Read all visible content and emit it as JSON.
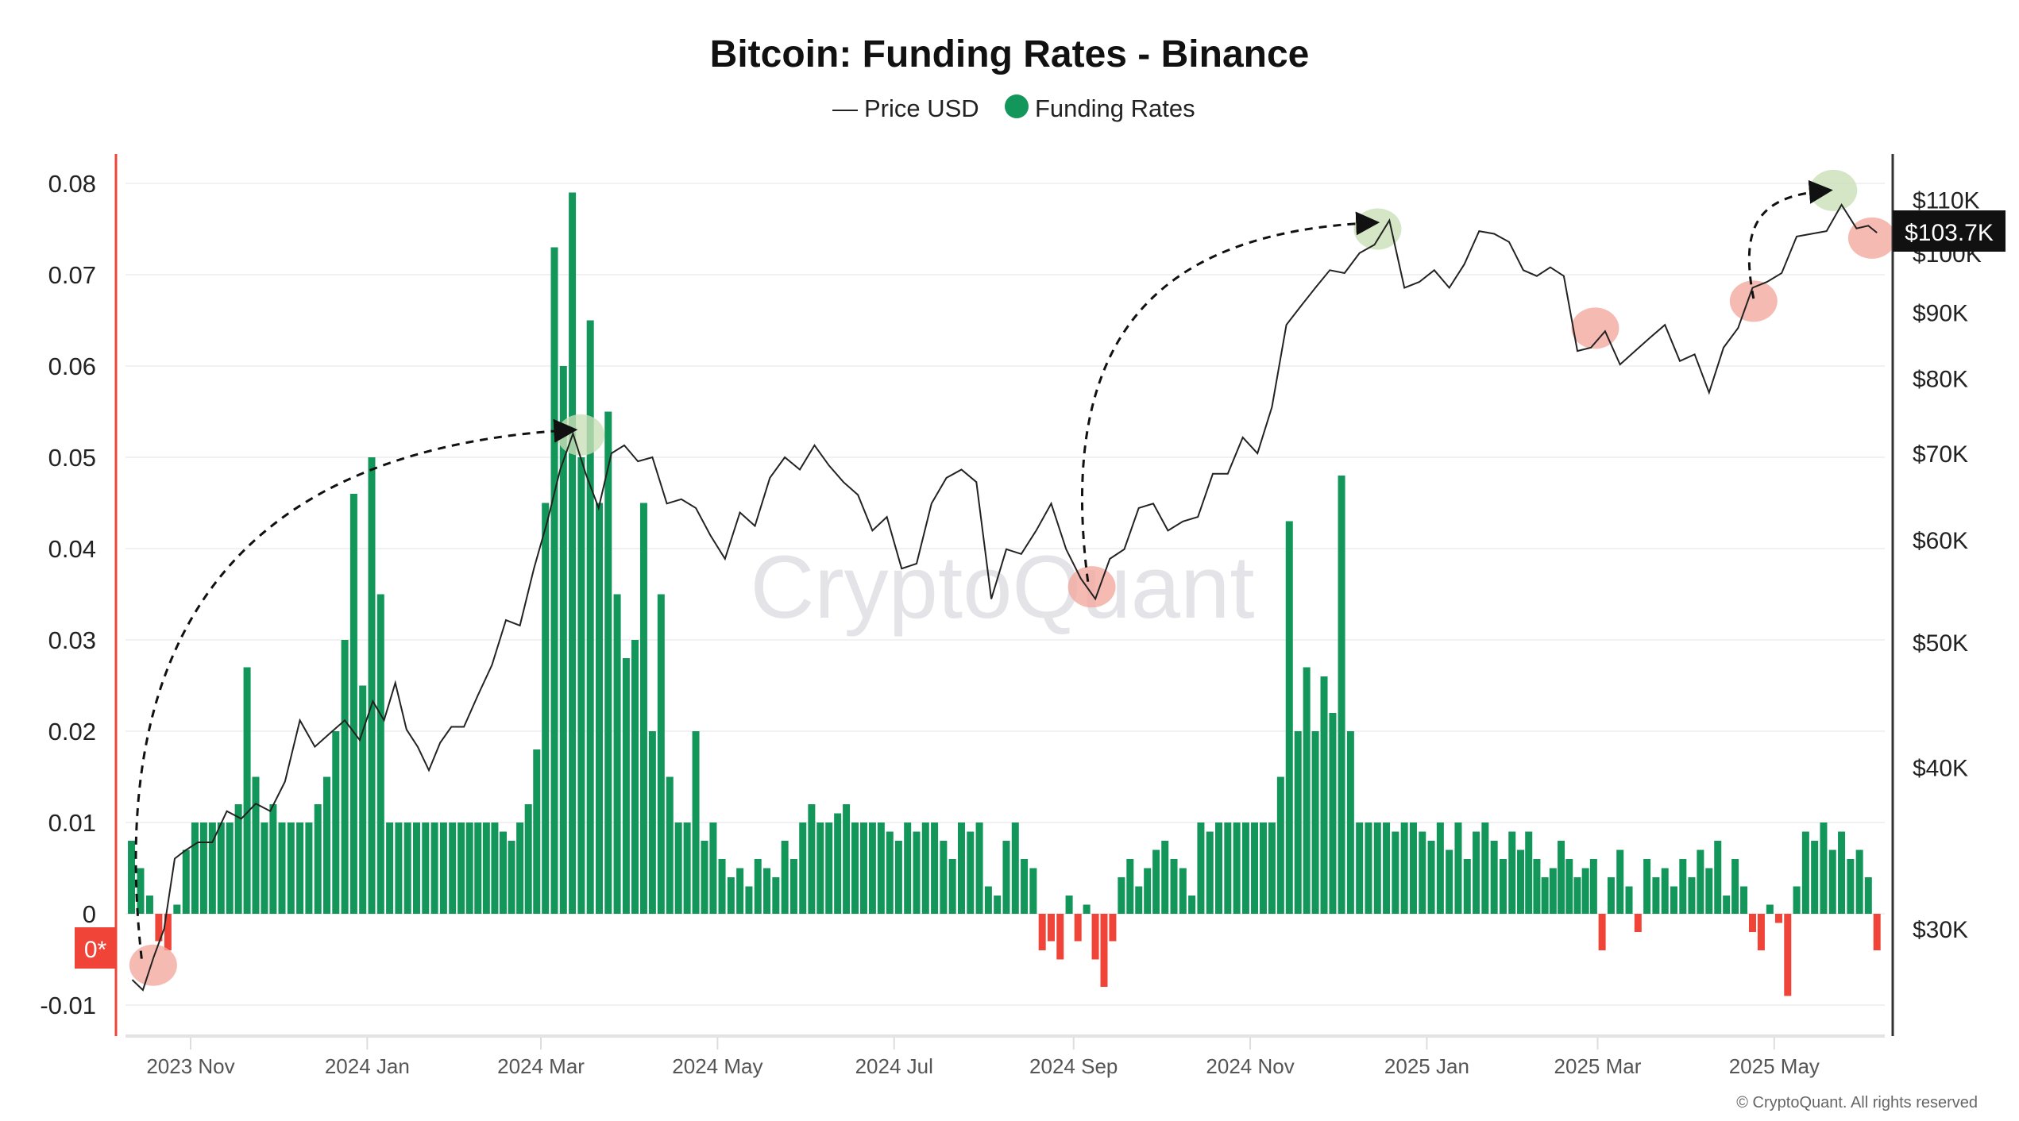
{
  "chart_data": {
    "type": "bar+line",
    "title": "Bitcoin: Funding Rates - Binance",
    "legend": [
      {
        "name": "Price USD",
        "marker": "line",
        "color": "#222222"
      },
      {
        "name": "Funding Rates",
        "marker": "dot",
        "color": "#12965a"
      }
    ],
    "legend_placement": "top-center",
    "watermark": "CryptoQuant",
    "copyright": "© CryptoQuant. All rights reserved",
    "xlim": [
      "2023-10-10",
      "2025-06-06"
    ],
    "x_ticks": [
      {
        "date": "2023-11-01",
        "label": "2023 Nov"
      },
      {
        "date": "2024-01-01",
        "label": "2024 Jan"
      },
      {
        "date": "2024-03-01",
        "label": "2024 Mar"
      },
      {
        "date": "2024-05-01",
        "label": "2024 May"
      },
      {
        "date": "2024-07-01",
        "label": "2024 Jul"
      },
      {
        "date": "2024-09-01",
        "label": "2024 Sep"
      },
      {
        "date": "2024-11-01",
        "label": "2024 Nov"
      },
      {
        "date": "2025-01-01",
        "label": "2025 Jan"
      },
      {
        "date": "2025-03-01",
        "label": "2025 Mar"
      },
      {
        "date": "2025-05-01",
        "label": "2025 May"
      }
    ],
    "left_axis": {
      "ylim": [
        -0.013,
        0.082
      ],
      "ticks": [
        {
          "value": 0.08,
          "label": "0.08"
        },
        {
          "value": 0.07,
          "label": "0.07"
        },
        {
          "value": 0.06,
          "label": "0.06"
        },
        {
          "value": 0.05,
          "label": "0.05"
        },
        {
          "value": 0.04,
          "label": "0.04"
        },
        {
          "value": 0.03,
          "label": "0.03"
        },
        {
          "value": 0.02,
          "label": "0.02"
        },
        {
          "value": 0.01,
          "label": "0.01"
        },
        {
          "value": 0,
          "label": "0"
        },
        {
          "value": -0.01,
          "label": "-0.01"
        }
      ],
      "zero_marker": "0*",
      "axis_color": "#f04438"
    },
    "right_axis": {
      "scale": "log",
      "ticks": [
        {
          "value": 30000,
          "label": "$30K"
        },
        {
          "value": 40000,
          "label": "$40K"
        },
        {
          "value": 50000,
          "label": "$50K"
        },
        {
          "value": 60000,
          "label": "$60K"
        },
        {
          "value": 70000,
          "label": "$70K"
        },
        {
          "value": 80000,
          "label": "$80K"
        },
        {
          "value": 90000,
          "label": "$90K"
        },
        {
          "value": 100000,
          "label": "$100K"
        },
        {
          "value": 110000,
          "label": "$110K"
        }
      ],
      "current_value_label": "$103.7K",
      "current_value": 103700
    },
    "grid": true,
    "colors": {
      "positive": "#12965a",
      "negative": "#f04438",
      "price": "#222222",
      "highlight_low": "#f2a99f",
      "highlight_high": "#c9e0b8"
    },
    "funding_rates": [
      {
        "month": "2023-10",
        "values": [
          0.008,
          0.005,
          0.002,
          -0.003,
          -0.004,
          0.001,
          0.007
        ]
      },
      {
        "month": "2023-11",
        "values": [
          0.01,
          0.01,
          0.01,
          0.01,
          0.01,
          0.012,
          0.027,
          0.015,
          0.01,
          0.012
        ]
      },
      {
        "month": "2023-12",
        "values": [
          0.01,
          0.01,
          0.01,
          0.01,
          0.012,
          0.015,
          0.02,
          0.03,
          0.046,
          0.025
        ]
      },
      {
        "month": "2024-01",
        "values": [
          0.05,
          0.035,
          0.01,
          0.01,
          0.01,
          0.01,
          0.01,
          0.01,
          0.01,
          0.01
        ]
      },
      {
        "month": "2024-02",
        "values": [
          0.01,
          0.01,
          0.01,
          0.01,
          0.01,
          0.009,
          0.008,
          0.01,
          0.012,
          0.018
        ]
      },
      {
        "month": "2024-03",
        "values": [
          0.045,
          0.073,
          0.06,
          0.079,
          0.05,
          0.065,
          0.045,
          0.055,
          0.035,
          0.028
        ]
      },
      {
        "month": "2024-04",
        "values": [
          0.03,
          0.045,
          0.02,
          0.035,
          0.015,
          0.01,
          0.01,
          0.02,
          0.008,
          0.01
        ]
      },
      {
        "month": "2024-05",
        "values": [
          0.006,
          0.004,
          0.005,
          0.003,
          0.006,
          0.005,
          0.004,
          0.008,
          0.006,
          0.01
        ]
      },
      {
        "month": "2024-06",
        "values": [
          0.012,
          0.01,
          0.01,
          0.011,
          0.012,
          0.01,
          0.01,
          0.01,
          0.01,
          0.009
        ]
      },
      {
        "month": "2024-07",
        "values": [
          0.008,
          0.01,
          0.009,
          0.01,
          0.01,
          0.008,
          0.006,
          0.01,
          0.009,
          0.01
        ]
      },
      {
        "month": "2024-08",
        "values": [
          0.003,
          0.002,
          0.008,
          0.01,
          0.006,
          0.005,
          -0.004,
          -0.003,
          -0.005,
          0.002
        ]
      },
      {
        "month": "2024-09",
        "values": [
          -0.003,
          0.001,
          -0.005,
          -0.008,
          -0.003,
          0.004,
          0.006,
          0.003,
          0.005,
          0.007
        ]
      },
      {
        "month": "2024-10",
        "values": [
          0.008,
          0.006,
          0.005,
          0.002,
          0.01,
          0.009,
          0.01,
          0.01,
          0.01,
          0.01
        ]
      },
      {
        "month": "2024-11",
        "values": [
          0.01,
          0.01,
          0.01,
          0.015,
          0.043,
          0.02,
          0.027,
          0.02,
          0.026,
          0.022
        ]
      },
      {
        "month": "2024-12",
        "values": [
          0.048,
          0.02,
          0.01,
          0.01,
          0.01,
          0.01,
          0.009,
          0.01,
          0.01,
          0.009
        ]
      },
      {
        "month": "2025-01",
        "values": [
          0.008,
          0.01,
          0.007,
          0.01,
          0.006,
          0.009,
          0.01,
          0.008,
          0.006,
          0.009
        ]
      },
      {
        "month": "2025-02",
        "values": [
          0.007,
          0.009,
          0.006,
          0.004,
          0.005,
          0.008,
          0.006,
          0.004,
          0.005,
          0.006
        ]
      },
      {
        "month": "2025-03",
        "values": [
          -0.004,
          0.004,
          0.007,
          0.003,
          -0.002,
          0.006,
          0.004,
          0.005,
          0.003,
          0.006
        ]
      },
      {
        "month": "2025-04",
        "values": [
          0.004,
          0.007,
          0.005,
          0.008,
          0.002,
          0.006,
          0.003,
          -0.002,
          -0.004,
          0.001
        ]
      },
      {
        "month": "2025-05",
        "values": [
          -0.001,
          -0.009,
          0.003,
          0.009,
          0.008,
          0.01,
          0.007,
          0.009,
          0.006,
          0.007
        ]
      },
      {
        "month": "2025-06",
        "values": [
          0.004,
          -0.004
        ]
      }
    ],
    "price_usd": [
      {
        "month": "2023-10",
        "values": [
          27400,
          26900,
          28500,
          30000,
          34000,
          34500
        ]
      },
      {
        "month": "2023-11",
        "values": [
          35000,
          35000,
          37000,
          36500,
          37500,
          37000
        ]
      },
      {
        "month": "2023-12",
        "values": [
          39000,
          43500,
          41500,
          42500,
          43500,
          42000
        ]
      },
      {
        "month": "2024-01",
        "values": [
          45000,
          43500,
          46500,
          42800,
          41500,
          39800,
          41800,
          43000
        ]
      },
      {
        "month": "2024-02",
        "values": [
          43000,
          45500,
          48000,
          52000,
          51500,
          57000
        ]
      },
      {
        "month": "2024-03",
        "values": [
          62000,
          68000,
          72500,
          67500,
          63500,
          70000,
          71000
        ]
      },
      {
        "month": "2024-04",
        "values": [
          69000,
          69500,
          64000,
          64500,
          63500,
          60500
        ]
      },
      {
        "month": "2024-05",
        "values": [
          58000,
          63000,
          61500,
          67000,
          69500,
          68000
        ]
      },
      {
        "month": "2024-06",
        "values": [
          71000,
          68500,
          66500,
          65000,
          61000,
          62500
        ]
      },
      {
        "month": "2024-07",
        "values": [
          57000,
          57500,
          64000,
          67000,
          68000,
          66500
        ]
      },
      {
        "month": "2024-08",
        "values": [
          54000,
          59000,
          58500,
          61000,
          64000,
          59000
        ]
      },
      {
        "month": "2024-09",
        "values": [
          56000,
          54000,
          58000,
          59000,
          63500,
          64000
        ]
      },
      {
        "month": "2024-10",
        "values": [
          61000,
          62000,
          62500,
          67500,
          67500,
          72000
        ]
      },
      {
        "month": "2024-11",
        "values": [
          70000,
          76000,
          88000,
          91000,
          94000,
          97000
        ]
      },
      {
        "month": "2024-12",
        "values": [
          96500,
          100000,
          101500,
          106000,
          94000,
          95000
        ]
      },
      {
        "month": "2025-01",
        "values": [
          97000,
          94000,
          98000,
          104000,
          103500,
          102000
        ]
      },
      {
        "month": "2025-02",
        "values": [
          97000,
          96000,
          97500,
          96000,
          84000,
          84500
        ]
      },
      {
        "month": "2025-03",
        "values": [
          87000,
          82000,
          84000,
          86000,
          88000,
          82500
        ]
      },
      {
        "month": "2025-04",
        "values": [
          83500,
          78000,
          84500,
          87500,
          94000,
          95000
        ]
      },
      {
        "month": "2025-05",
        "values": [
          96500,
          103000,
          103500,
          104000,
          109000,
          104500
        ]
      },
      {
        "month": "2025-06",
        "values": [
          105000,
          103700
        ]
      }
    ]
  }
}
